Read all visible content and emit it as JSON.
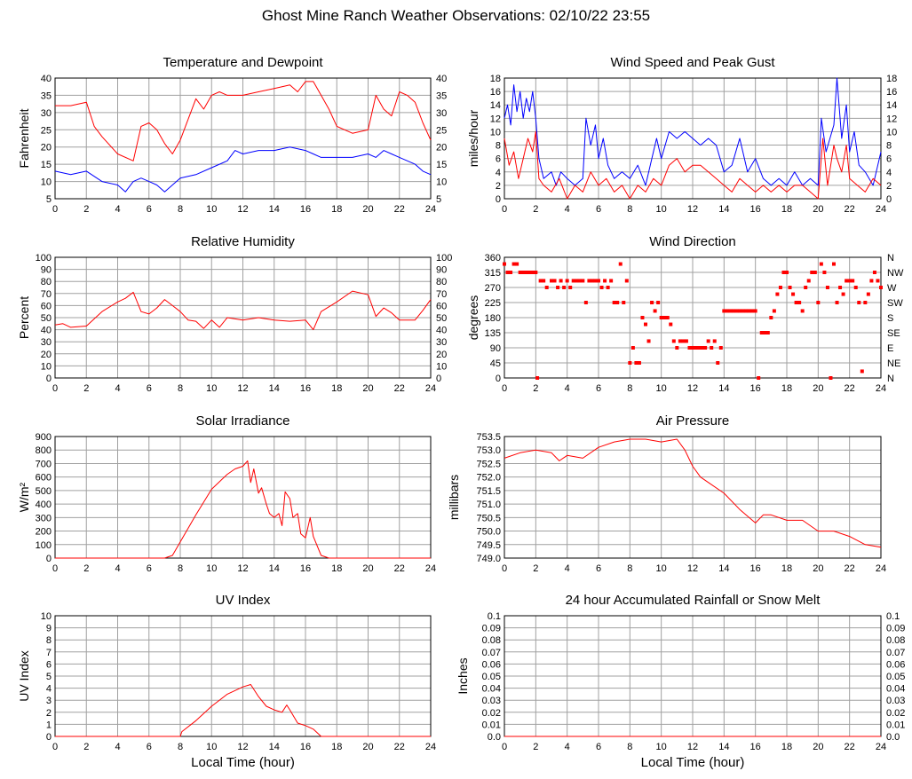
{
  "page": {
    "title": "Ghost Mine Ranch Weather Observations: 02/10/22 23:55"
  },
  "colors": {
    "red": "#ff0000",
    "blue": "#0000ff",
    "grid": "#a0a0a0",
    "axis": "#000000"
  },
  "chart_data": [
    {
      "id": "temp",
      "type": "line",
      "title": "Temperature and Dewpoint",
      "ylabel": "Fahrenheit",
      "xlabel": "",
      "xlim": [
        0,
        24
      ],
      "ylim": [
        5,
        40
      ],
      "yticks": [
        5,
        10,
        15,
        20,
        25,
        30,
        35,
        40
      ],
      "right_axis": true,
      "grid": true,
      "series": [
        {
          "color": "#ff0000",
          "x": [
            0,
            1,
            2,
            2.5,
            3,
            4,
            5,
            5.5,
            6,
            6.5,
            7,
            7.5,
            8,
            9,
            9.5,
            10,
            10.5,
            11,
            12,
            13,
            14,
            15,
            15.5,
            16,
            16.5,
            17,
            17.5,
            18,
            19,
            20,
            20.5,
            21,
            21.5,
            22,
            22.5,
            23,
            23.5,
            24
          ],
          "y": [
            32,
            32,
            33,
            26,
            23,
            18,
            16,
            26,
            27,
            25,
            21,
            18,
            22,
            34,
            31,
            35,
            36,
            35,
            35,
            36,
            37,
            38,
            36,
            39,
            39,
            35,
            31,
            26,
            24,
            25,
            35,
            31,
            29,
            36,
            35,
            33,
            27,
            22
          ]
        },
        {
          "color": "#0000ff",
          "x": [
            0,
            1,
            2,
            3,
            4,
            4.5,
            5,
            5.5,
            6,
            6.5,
            7,
            7.5,
            8,
            9,
            10,
            11,
            11.5,
            12,
            13,
            14,
            15,
            16,
            16.5,
            17,
            18,
            19,
            20,
            20.5,
            21,
            21.5,
            22,
            23,
            23.5,
            24
          ],
          "y": [
            13,
            12,
            13,
            10,
            9,
            7,
            10,
            11,
            10,
            9,
            7,
            9,
            11,
            12,
            14,
            16,
            19,
            18,
            19,
            19,
            20,
            19,
            18,
            17,
            17,
            17,
            18,
            17,
            19,
            18,
            17,
            15,
            13,
            12
          ]
        }
      ]
    },
    {
      "id": "wind",
      "type": "line",
      "title": "Wind Speed and Peak Gust",
      "ylabel": "miles/hour",
      "xlabel": "",
      "xlim": [
        0,
        24
      ],
      "ylim": [
        0,
        18
      ],
      "yticks": [
        0,
        2,
        4,
        6,
        8,
        10,
        12,
        14,
        16,
        18
      ],
      "right_axis": true,
      "grid": true,
      "series": [
        {
          "color": "#0000ff",
          "x": [
            0,
            0.2,
            0.4,
            0.6,
            0.8,
            1,
            1.2,
            1.4,
            1.6,
            1.8,
            2,
            2.2,
            2.5,
            3,
            3.3,
            3.6,
            4,
            4.5,
            5,
            5.2,
            5.5,
            5.8,
            6,
            6.3,
            6.6,
            7,
            7.5,
            8,
            8.5,
            9,
            9.5,
            9.7,
            10,
            10.5,
            11,
            11.5,
            12,
            12.5,
            13,
            13.5,
            14,
            14.5,
            15,
            15.5,
            16,
            16.5,
            17,
            17.5,
            18,
            18.5,
            19,
            19.5,
            20,
            20.2,
            20.5,
            21,
            21.2,
            21.5,
            21.8,
            22,
            22.3,
            22.6,
            23,
            23.5,
            24
          ],
          "y": [
            12,
            14,
            11,
            17,
            13,
            16,
            12,
            15,
            13,
            16,
            12,
            6,
            3,
            4,
            2,
            4,
            3,
            2,
            3,
            12,
            8,
            11,
            6,
            9,
            5,
            3,
            4,
            3,
            5,
            2,
            7,
            9,
            6,
            10,
            9,
            10,
            9,
            8,
            9,
            8,
            4,
            5,
            9,
            4,
            6,
            3,
            2,
            3,
            2,
            4,
            2,
            3,
            2,
            12,
            7,
            11,
            18,
            9,
            14,
            7,
            10,
            5,
            4,
            2,
            7
          ]
        },
        {
          "color": "#ff0000",
          "x": [
            0,
            0.3,
            0.6,
            0.9,
            1.2,
            1.5,
            1.8,
            2,
            2.2,
            2.5,
            3,
            3.5,
            4,
            4.5,
            5,
            5.5,
            6,
            6.5,
            7,
            7.5,
            8,
            8.5,
            9,
            9.5,
            10,
            10.5,
            11,
            11.5,
            12,
            12.5,
            13,
            13.5,
            14,
            14.5,
            15,
            15.5,
            16,
            16.5,
            17,
            17.5,
            18,
            18.5,
            19,
            19.5,
            20,
            20.3,
            20.6,
            21,
            21.2,
            21.5,
            21.8,
            22,
            22.5,
            23,
            23.5,
            24
          ],
          "y": [
            9,
            5,
            7,
            3,
            6,
            9,
            7,
            10,
            3,
            2,
            1,
            3,
            0,
            2,
            1,
            4,
            2,
            3,
            1,
            2,
            0,
            2,
            1,
            3,
            2,
            5,
            6,
            4,
            5,
            5,
            4,
            3,
            2,
            1,
            3,
            2,
            1,
            2,
            1,
            2,
            1,
            2,
            2,
            1,
            0,
            9,
            2,
            8,
            6,
            4,
            8,
            3,
            2,
            1,
            3,
            2
          ]
        }
      ]
    },
    {
      "id": "humidity",
      "type": "line",
      "title": "Relative Humidity",
      "ylabel": "Percent",
      "xlabel": "",
      "xlim": [
        0,
        24
      ],
      "ylim": [
        0,
        100
      ],
      "yticks": [
        0,
        10,
        20,
        30,
        40,
        50,
        60,
        70,
        80,
        90,
        100
      ],
      "right_axis": true,
      "grid": true,
      "series": [
        {
          "color": "#ff0000",
          "x": [
            0,
            0.5,
            1,
            2,
            3,
            4,
            4.5,
            5,
            5.5,
            6,
            6.5,
            7,
            7.5,
            8,
            8.5,
            9,
            9.5,
            10,
            10.5,
            11,
            12,
            13,
            14,
            15,
            16,
            16.5,
            17,
            18,
            19,
            20,
            20.5,
            21,
            21.5,
            22,
            23,
            23.5,
            24
          ],
          "y": [
            44,
            45,
            42,
            43,
            55,
            63,
            66,
            71,
            55,
            53,
            58,
            65,
            60,
            55,
            48,
            47,
            41,
            48,
            42,
            50,
            48,
            50,
            48,
            47,
            48,
            40,
            55,
            63,
            72,
            69,
            51,
            58,
            54,
            48,
            48,
            56,
            65
          ]
        }
      ]
    },
    {
      "id": "winddir",
      "type": "scatter",
      "title": "Wind Direction",
      "ylabel": "degrees",
      "xlabel": "",
      "xlim": [
        0,
        24
      ],
      "ylim": [
        0,
        360
      ],
      "yticks": [
        0,
        45,
        90,
        135,
        180,
        225,
        270,
        315,
        360
      ],
      "right_labels": [
        "N",
        "NE",
        "E",
        "SE",
        "S",
        "SW",
        "W",
        "NW",
        "N"
      ],
      "grid": true,
      "series": [
        {
          "color": "#ff0000",
          "x": [
            0,
            0.2,
            0.4,
            0.6,
            0.8,
            1,
            1.2,
            1.4,
            1.6,
            1.8,
            2,
            2.1,
            2.3,
            2.5,
            2.7,
            3,
            3.2,
            3.4,
            3.6,
            3.8,
            4,
            4.2,
            4.4,
            4.6,
            4.8,
            5,
            5.2,
            5.4,
            5.6,
            5.8,
            6,
            6.2,
            6.4,
            6.6,
            6.8,
            7,
            7.2,
            7.4,
            7.6,
            7.8,
            8,
            8.2,
            8.4,
            8.6,
            8.8,
            9,
            9.2,
            9.4,
            9.6,
            9.8,
            10,
            10.2,
            10.4,
            10.6,
            10.8,
            11,
            11.2,
            11.4,
            11.6,
            11.8,
            12,
            12.2,
            12.4,
            12.6,
            12.8,
            13,
            13.2,
            13.4,
            13.6,
            13.8,
            14,
            14.2,
            14.4,
            14.6,
            14.8,
            15,
            15.2,
            15.4,
            15.6,
            15.8,
            16,
            16.2,
            16.4,
            16.6,
            16.8,
            17,
            17.2,
            17.4,
            17.6,
            17.8,
            18,
            18.2,
            18.4,
            18.6,
            18.8,
            19,
            19.2,
            19.4,
            19.6,
            19.8,
            20,
            20.2,
            20.4,
            20.6,
            20.8,
            21,
            21.2,
            21.4,
            21.6,
            21.8,
            22,
            22.2,
            22.4,
            22.6,
            22.8,
            23,
            23.2,
            23.4,
            23.6,
            23.8,
            24
          ],
          "y": [
            340,
            315,
            315,
            340,
            340,
            315,
            315,
            315,
            315,
            315,
            315,
            0,
            290,
            290,
            270,
            290,
            290,
            270,
            290,
            270,
            290,
            270,
            290,
            290,
            290,
            290,
            225,
            290,
            290,
            290,
            290,
            270,
            290,
            270,
            290,
            225,
            225,
            340,
            225,
            290,
            45,
            90,
            45,
            45,
            180,
            160,
            110,
            225,
            200,
            225,
            180,
            180,
            180,
            160,
            110,
            90,
            110,
            110,
            110,
            90,
            90,
            90,
            90,
            90,
            90,
            110,
            90,
            110,
            45,
            90,
            200,
            200,
            200,
            200,
            200,
            200,
            200,
            200,
            200,
            200,
            200,
            0,
            135,
            135,
            135,
            180,
            200,
            250,
            270,
            315,
            315,
            270,
            250,
            225,
            225,
            200,
            270,
            290,
            315,
            315,
            225,
            340,
            315,
            270,
            0,
            340,
            225,
            270,
            250,
            290,
            290,
            290,
            270,
            225,
            20,
            225,
            250,
            290,
            315,
            290,
            270
          ]
        }
      ]
    },
    {
      "id": "solar",
      "type": "line",
      "title": "Solar Irradiance",
      "ylabel": "W/m²",
      "xlabel": "",
      "xlim": [
        0,
        24
      ],
      "ylim": [
        0,
        900
      ],
      "yticks": [
        0,
        100,
        200,
        300,
        400,
        500,
        600,
        700,
        800,
        900
      ],
      "right_axis": false,
      "grid": true,
      "series": [
        {
          "color": "#ff0000",
          "x": [
            0,
            7,
            7.5,
            8,
            9,
            10,
            11,
            11.5,
            12,
            12.3,
            12.5,
            12.7,
            13,
            13.2,
            13.5,
            13.7,
            14,
            14.3,
            14.5,
            14.7,
            15,
            15.2,
            15.5,
            15.7,
            16,
            16.3,
            16.5,
            17,
            17.5,
            18,
            24
          ],
          "y": [
            0,
            0,
            20,
            120,
            320,
            510,
            620,
            660,
            680,
            720,
            560,
            660,
            480,
            520,
            400,
            330,
            300,
            330,
            240,
            490,
            440,
            300,
            330,
            180,
            150,
            300,
            160,
            20,
            0,
            0,
            0
          ]
        }
      ]
    },
    {
      "id": "pressure",
      "type": "line",
      "title": "Air Pressure",
      "ylabel": "millibars",
      "xlabel": "",
      "xlim": [
        0,
        24
      ],
      "ylim": [
        749.0,
        753.5
      ],
      "yticks": [
        749.0,
        749.5,
        750.0,
        750.5,
        751.0,
        751.5,
        752.0,
        752.5,
        753.0,
        753.5
      ],
      "right_axis": false,
      "grid": true,
      "series": [
        {
          "color": "#ff0000",
          "x": [
            0,
            1,
            2,
            3,
            3.5,
            4,
            5,
            6,
            7,
            8,
            9,
            10,
            11,
            11.5,
            12,
            12.5,
            13,
            14,
            15,
            16,
            16.5,
            17,
            18,
            19,
            20,
            21,
            22,
            23,
            24
          ],
          "y": [
            752.7,
            752.9,
            753.0,
            752.9,
            752.6,
            752.8,
            752.7,
            753.1,
            753.3,
            753.4,
            753.4,
            753.3,
            753.4,
            753.0,
            752.4,
            752.0,
            751.8,
            751.4,
            750.8,
            750.3,
            750.6,
            750.6,
            750.4,
            750.4,
            750.0,
            750.0,
            749.8,
            749.5,
            749.4
          ]
        }
      ]
    },
    {
      "id": "uv",
      "type": "line",
      "title": "UV Index",
      "ylabel": "UV Index",
      "xlabel": "Local Time (hour)",
      "xlim": [
        0,
        24
      ],
      "ylim": [
        0,
        10
      ],
      "yticks": [
        0,
        1,
        2,
        3,
        4,
        5,
        6,
        7,
        8,
        9,
        10
      ],
      "right_axis": false,
      "grid": true,
      "series": [
        {
          "color": "#ff0000",
          "x": [
            0,
            8,
            8.1,
            9,
            10,
            11,
            12,
            12.5,
            13,
            13.5,
            14,
            14.5,
            14.8,
            15,
            15.5,
            16,
            16.5,
            17,
            24
          ],
          "y": [
            0,
            0,
            0.4,
            1.3,
            2.5,
            3.5,
            4.1,
            4.3,
            3.3,
            2.5,
            2.2,
            2.0,
            2.6,
            2.2,
            1.1,
            0.9,
            0.6,
            0,
            0
          ]
        }
      ]
    },
    {
      "id": "rain",
      "type": "line",
      "title": "24 hour Accumulated Rainfall or Snow Melt",
      "ylabel": "Inches",
      "xlabel": "Local Time (hour)",
      "xlim": [
        0,
        24
      ],
      "ylim": [
        0,
        0.1
      ],
      "yticks": [
        0,
        0.01,
        0.02,
        0.03,
        0.04,
        0.05,
        0.06,
        0.07,
        0.08,
        0.09,
        0.1
      ],
      "ytick_labels": [
        "0.0",
        "0.01",
        "0.02",
        "0.03",
        "0.04",
        "0.05",
        "0.06",
        "0.07",
        "0.08",
        "0.09",
        "0.1"
      ],
      "right_axis": true,
      "grid": true,
      "series": [
        {
          "color": "#ff0000",
          "x": [
            0,
            24
          ],
          "y": [
            0,
            0
          ]
        }
      ]
    }
  ]
}
